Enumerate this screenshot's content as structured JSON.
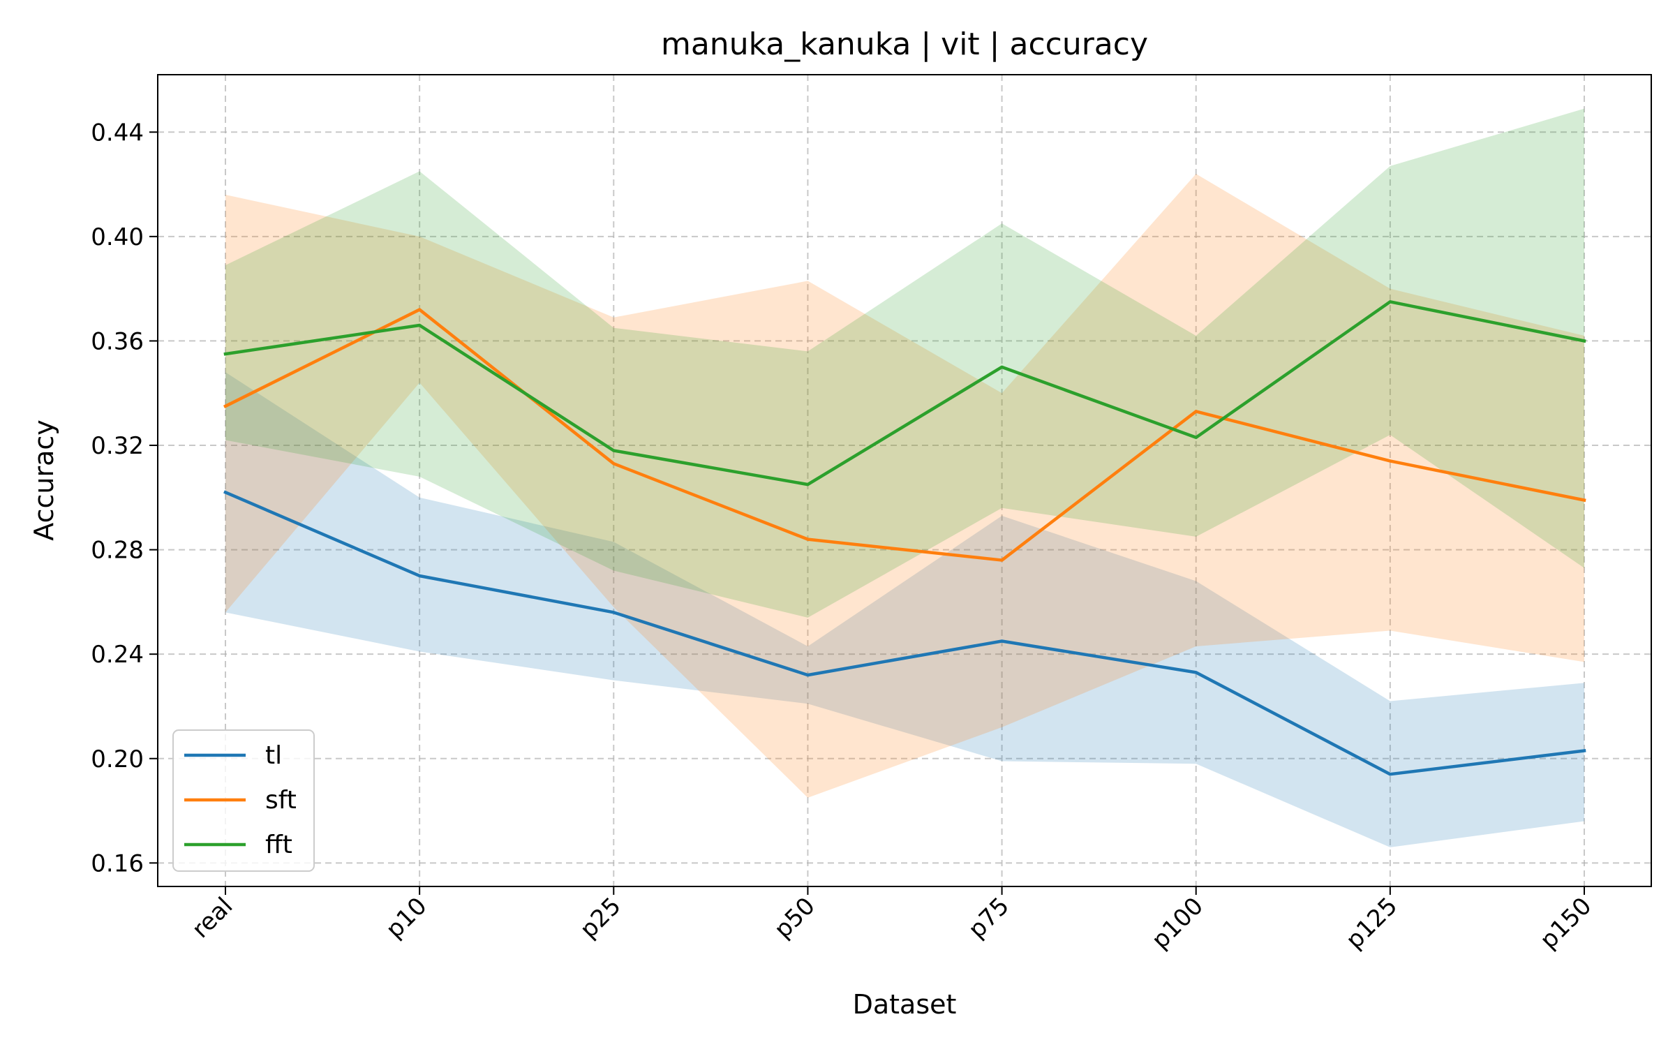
{
  "chart_data": {
    "type": "line",
    "title": "manuka_kanuka | vit | accuracy",
    "xlabel": "Dataset",
    "ylabel": "Accuracy",
    "categories": [
      "real",
      "p10",
      "p25",
      "p50",
      "p75",
      "p100",
      "p125",
      "p150"
    ],
    "ylim": [
      0.151,
      0.462
    ],
    "yticks": [
      0.16,
      0.2,
      0.24,
      0.28,
      0.32,
      0.36,
      0.4,
      0.44
    ],
    "ytick_labels": [
      "0.16",
      "0.20",
      "0.24",
      "0.28",
      "0.32",
      "0.36",
      "0.40",
      "0.44"
    ],
    "grid": true,
    "legend_position": "lower-left",
    "series": [
      {
        "name": "tl",
        "color": "#1f77b4",
        "values": [
          0.302,
          0.27,
          0.256,
          0.232,
          0.245,
          0.233,
          0.194,
          0.203
        ],
        "lower": [
          0.256,
          0.241,
          0.23,
          0.221,
          0.199,
          0.198,
          0.166,
          0.176
        ],
        "upper": [
          0.348,
          0.3,
          0.283,
          0.243,
          0.293,
          0.268,
          0.222,
          0.229
        ]
      },
      {
        "name": "sft",
        "color": "#ff7f0e",
        "values": [
          0.335,
          0.372,
          0.313,
          0.284,
          0.276,
          0.333,
          0.314,
          0.299
        ],
        "lower": [
          0.256,
          0.344,
          0.258,
          0.185,
          0.212,
          0.243,
          0.249,
          0.237
        ],
        "upper": [
          0.416,
          0.4,
          0.369,
          0.383,
          0.34,
          0.424,
          0.38,
          0.362
        ]
      },
      {
        "name": "fft",
        "color": "#2ca02c",
        "values": [
          0.355,
          0.366,
          0.318,
          0.305,
          0.35,
          0.323,
          0.375,
          0.36
        ],
        "lower": [
          0.322,
          0.308,
          0.272,
          0.254,
          0.296,
          0.285,
          0.324,
          0.273
        ],
        "upper": [
          0.389,
          0.425,
          0.365,
          0.356,
          0.405,
          0.362,
          0.427,
          0.449
        ]
      }
    ]
  }
}
